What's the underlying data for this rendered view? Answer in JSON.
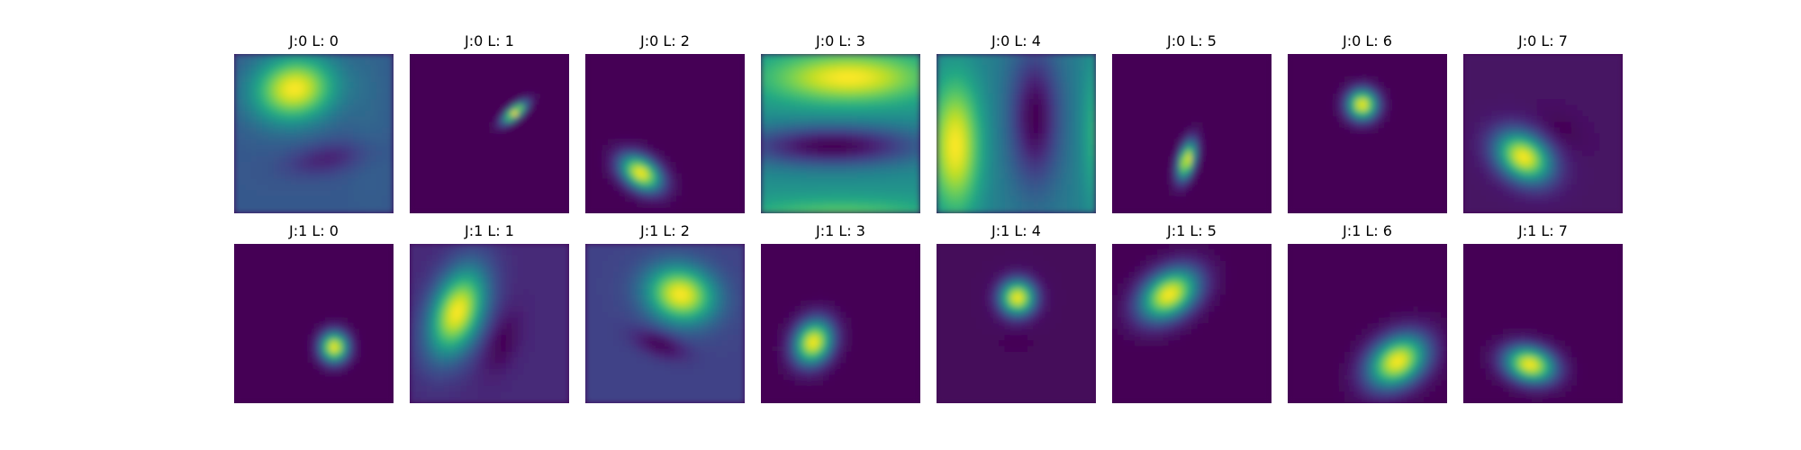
{
  "chart_data": {
    "type": "heatmap",
    "colormap": "viridis",
    "background_color": "#440154",
    "rows": 2,
    "cols": 8,
    "panels": [
      {
        "title": "J:0 L: 0",
        "j": 0,
        "l": 0,
        "base": 0.28,
        "blobs": [
          {
            "cx": 0.38,
            "cy": 0.22,
            "sx": 0.18,
            "sy": 0.14,
            "angle": -10,
            "amp": 0.72
          },
          {
            "cx": 0.58,
            "cy": 0.66,
            "sx": 0.18,
            "sy": 0.07,
            "angle": -10,
            "amp": -0.18
          },
          {
            "cx": 0.85,
            "cy": 0.3,
            "sx": 0.1,
            "sy": 0.35,
            "angle": 0,
            "amp": 0.05
          }
        ]
      },
      {
        "title": "J:0 L: 1",
        "j": 0,
        "l": 1,
        "base": 0.0,
        "blobs": [
          {
            "cx": 0.66,
            "cy": 0.37,
            "sx": 0.065,
            "sy": 0.025,
            "angle": -40,
            "amp": 1.0
          }
        ]
      },
      {
        "title": "J:0 L: 2",
        "j": 0,
        "l": 2,
        "base": 0.0,
        "blobs": [
          {
            "cx": 0.35,
            "cy": 0.75,
            "sx": 0.1,
            "sy": 0.065,
            "angle": 35,
            "amp": 1.0
          }
        ]
      },
      {
        "title": "J:0 L: 3",
        "j": 0,
        "l": 3,
        "base": 0.5,
        "blobs": [
          {
            "cx": 0.55,
            "cy": 0.15,
            "sx": 0.35,
            "sy": 0.11,
            "angle": 0,
            "amp": 0.5
          },
          {
            "cx": 0.45,
            "cy": 0.58,
            "sx": 0.4,
            "sy": 0.09,
            "angle": 0,
            "amp": -0.5
          },
          {
            "cx": 0.5,
            "cy": 1.02,
            "sx": 0.45,
            "sy": 0.08,
            "angle": 0,
            "amp": 0.25
          }
        ]
      },
      {
        "title": "J:0 L: 4",
        "j": 0,
        "l": 4,
        "base": 0.42,
        "blobs": [
          {
            "cx": 0.12,
            "cy": 0.58,
            "sx": 0.11,
            "sy": 0.3,
            "angle": 0,
            "amp": 0.58
          },
          {
            "cx": 0.62,
            "cy": 0.4,
            "sx": 0.11,
            "sy": 0.3,
            "angle": 0,
            "amp": -0.42
          },
          {
            "cx": 1.02,
            "cy": 0.5,
            "sx": 0.07,
            "sy": 0.35,
            "angle": 0,
            "amp": 0.25
          }
        ]
      },
      {
        "title": "J:0 L: 5",
        "j": 0,
        "l": 5,
        "base": 0.0,
        "blobs": [
          {
            "cx": 0.47,
            "cy": 0.67,
            "sx": 0.035,
            "sy": 0.085,
            "angle": 15,
            "amp": 1.0
          }
        ]
      },
      {
        "title": "J:0 L: 6",
        "j": 0,
        "l": 6,
        "base": 0.0,
        "blobs": [
          {
            "cx": 0.47,
            "cy": 0.32,
            "sx": 0.065,
            "sy": 0.065,
            "angle": 0,
            "amp": 1.0
          }
        ]
      },
      {
        "title": "J:0 L: 7",
        "j": 0,
        "l": 7,
        "base": 0.05,
        "blobs": [
          {
            "cx": 0.38,
            "cy": 0.65,
            "sx": 0.13,
            "sy": 0.095,
            "angle": 35,
            "amp": 0.95
          },
          {
            "cx": 0.62,
            "cy": 0.47,
            "sx": 0.1,
            "sy": 0.06,
            "angle": 35,
            "amp": -0.05
          }
        ]
      },
      {
        "title": "J:1 L: 0",
        "j": 1,
        "l": 0,
        "base": 0.0,
        "blobs": [
          {
            "cx": 0.63,
            "cy": 0.65,
            "sx": 0.06,
            "sy": 0.065,
            "angle": 0,
            "amp": 1.0
          }
        ]
      },
      {
        "title": "J:1 L: 1",
        "j": 1,
        "l": 1,
        "base": 0.12,
        "blobs": [
          {
            "cx": 0.3,
            "cy": 0.43,
            "sx": 0.11,
            "sy": 0.2,
            "angle": 20,
            "amp": 0.88
          },
          {
            "cx": 0.58,
            "cy": 0.62,
            "sx": 0.07,
            "sy": 0.14,
            "angle": 20,
            "amp": -0.12
          }
        ]
      },
      {
        "title": "J:1 L: 2",
        "j": 1,
        "l": 2,
        "base": 0.2,
        "blobs": [
          {
            "cx": 0.6,
            "cy": 0.32,
            "sx": 0.15,
            "sy": 0.12,
            "angle": 15,
            "amp": 0.8
          },
          {
            "cx": 0.47,
            "cy": 0.63,
            "sx": 0.12,
            "sy": 0.055,
            "angle": 20,
            "amp": -0.2
          }
        ]
      },
      {
        "title": "J:1 L: 3",
        "j": 1,
        "l": 3,
        "base": 0.0,
        "blobs": [
          {
            "cx": 0.33,
            "cy": 0.62,
            "sx": 0.08,
            "sy": 0.1,
            "angle": 25,
            "amp": 1.0
          }
        ]
      },
      {
        "title": "J:1 L: 4",
        "j": 1,
        "l": 4,
        "base": 0.02,
        "blobs": [
          {
            "cx": 0.51,
            "cy": 0.34,
            "sx": 0.075,
            "sy": 0.075,
            "angle": 0,
            "amp": 0.98
          },
          {
            "cx": 0.51,
            "cy": 0.62,
            "sx": 0.06,
            "sy": 0.03,
            "angle": 0,
            "amp": -0.02
          }
        ]
      },
      {
        "title": "J:1 L: 5",
        "j": 1,
        "l": 5,
        "base": 0.0,
        "blobs": [
          {
            "cx": 0.36,
            "cy": 0.32,
            "sx": 0.14,
            "sy": 0.095,
            "angle": -35,
            "amp": 1.0
          }
        ]
      },
      {
        "title": "J:1 L: 6",
        "j": 1,
        "l": 6,
        "base": 0.0,
        "blobs": [
          {
            "cx": 0.69,
            "cy": 0.74,
            "sx": 0.14,
            "sy": 0.1,
            "angle": -35,
            "amp": 1.0
          }
        ]
      },
      {
        "title": "J:1 L: 7",
        "j": 1,
        "l": 7,
        "base": 0.0,
        "blobs": [
          {
            "cx": 0.42,
            "cy": 0.76,
            "sx": 0.11,
            "sy": 0.075,
            "angle": 15,
            "amp": 1.0
          }
        ]
      }
    ]
  }
}
